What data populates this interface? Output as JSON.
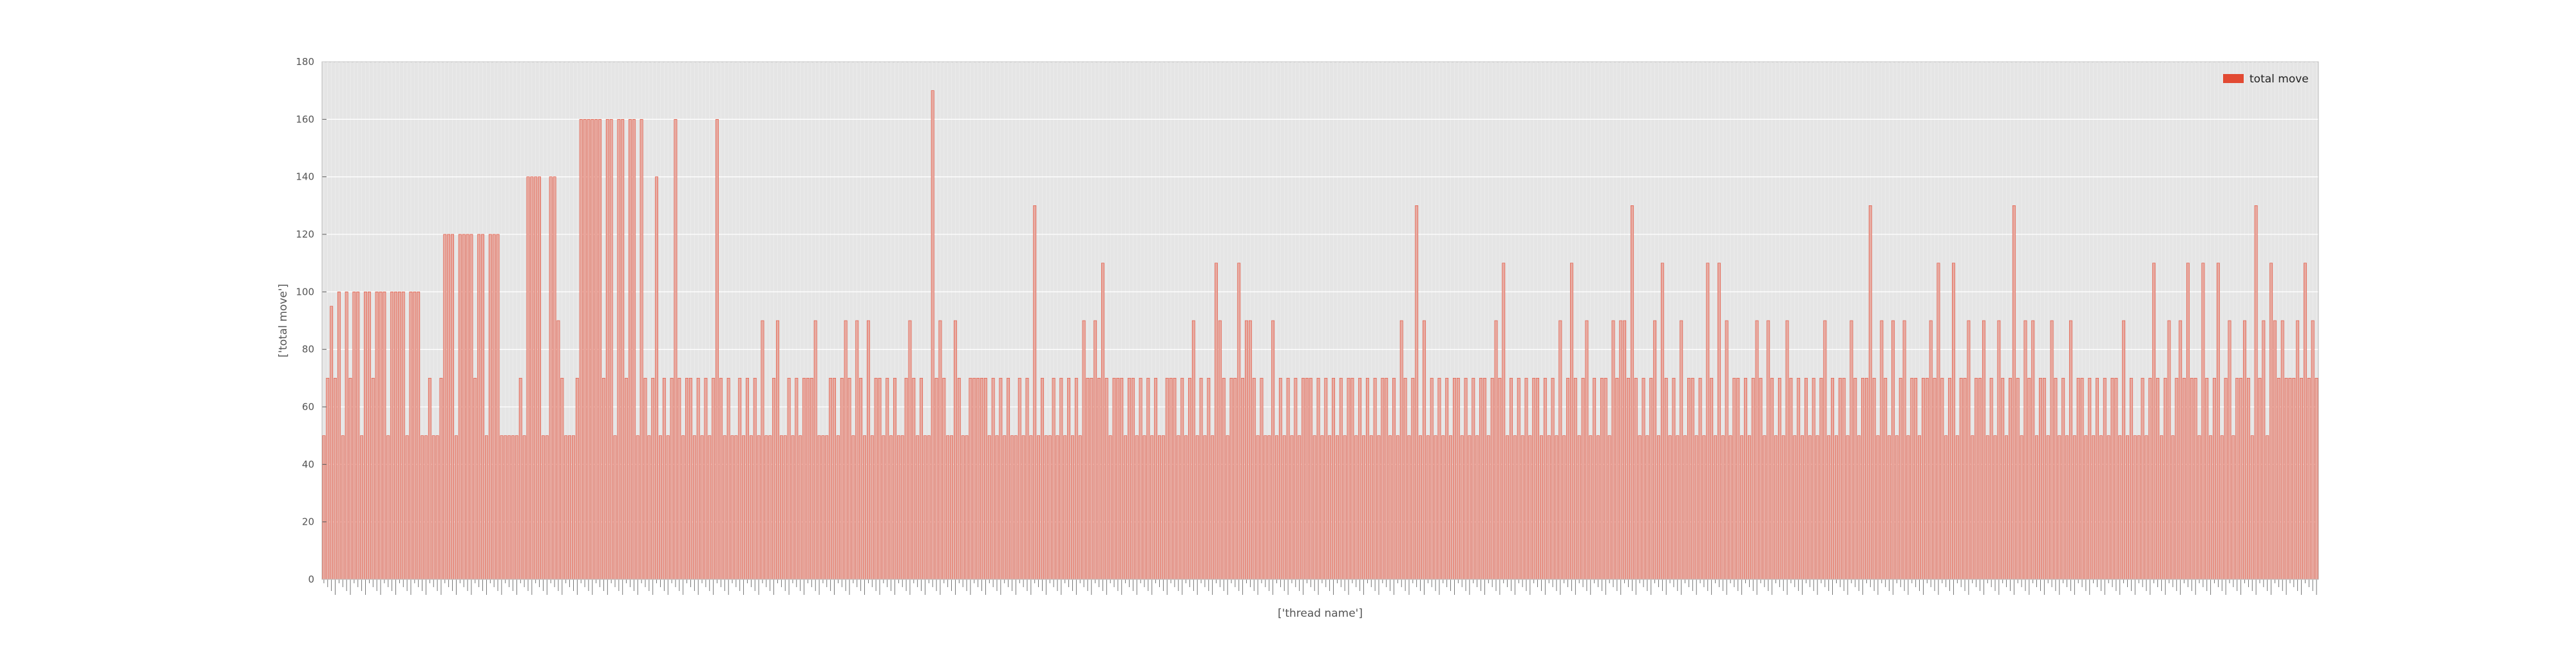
{
  "colors": {
    "plot_background": "#e5e5e5",
    "bar_face": "#e8aba2",
    "bar_edge": "#e24a33",
    "legend_patch": "#e24a33",
    "grid": "#ffffff",
    "text": "#555555"
  },
  "chart_data": {
    "type": "bar",
    "xlabel": "['thread name']",
    "ylabel": "['total move']",
    "ylim": [
      0,
      180
    ],
    "yticks": [
      0,
      20,
      40,
      60,
      80,
      100,
      120,
      140,
      160,
      180
    ],
    "grid": true,
    "legend_position": "top-right",
    "series": [
      {
        "name": "total move",
        "values": [
          50,
          70,
          95,
          70,
          100,
          50,
          100,
          70,
          100,
          100,
          50,
          100,
          100,
          70,
          100,
          100,
          100,
          50,
          100,
          100,
          100,
          100,
          50,
          100,
          100,
          100,
          50,
          50,
          70,
          50,
          50,
          70,
          120,
          120,
          120,
          50,
          120,
          120,
          120,
          120,
          70,
          120,
          120,
          50,
          120,
          120,
          120,
          50,
          50,
          50,
          50,
          50,
          70,
          50,
          140,
          140,
          140,
          140,
          50,
          50,
          140,
          140,
          90,
          70,
          50,
          50,
          50,
          70,
          160,
          160,
          160,
          160,
          160,
          160,
          70,
          160,
          160,
          50,
          160,
          160,
          70,
          160,
          160,
          50,
          160,
          70,
          50,
          70,
          140,
          50,
          70,
          50,
          70,
          160,
          70,
          50,
          70,
          70,
          50,
          70,
          50,
          70,
          50,
          70,
          160,
          70,
          50,
          70,
          50,
          50,
          70,
          50,
          70,
          50,
          70,
          50,
          90,
          50,
          50,
          70,
          90,
          50,
          50,
          70,
          50,
          70,
          50,
          70,
          70,
          70,
          90,
          50,
          50,
          50,
          70,
          70,
          50,
          70,
          90,
          70,
          50,
          90,
          70,
          50,
          90,
          50,
          70,
          70,
          50,
          70,
          50,
          70,
          50,
          50,
          70,
          90,
          70,
          50,
          70,
          50,
          50,
          170,
          70,
          90,
          70,
          50,
          50,
          90,
          70,
          50,
          50,
          70,
          70,
          70,
          70,
          70,
          50,
          70,
          50,
          70,
          50,
          70,
          50,
          50,
          70,
          50,
          70,
          50,
          130,
          50,
          70,
          50,
          50,
          70,
          50,
          70,
          50,
          70,
          50,
          70,
          50,
          90,
          70,
          70,
          90,
          70,
          110,
          70,
          50,
          70,
          70,
          70,
          50,
          70,
          70,
          50,
          70,
          50,
          70,
          50,
          70,
          50,
          50,
          70,
          70,
          70,
          50,
          70,
          50,
          70,
          90,
          50,
          70,
          50,
          70,
          50,
          110,
          90,
          70,
          50,
          70,
          70,
          110,
          70,
          90,
          90,
          70,
          50,
          70,
          50,
          50,
          90,
          50,
          70,
          50,
          70,
          50,
          70,
          50,
          70,
          70,
          70,
          50,
          70,
          50,
          70,
          50,
          70,
          50,
          70,
          50,
          70,
          70,
          50,
          70,
          50,
          70,
          50,
          70,
          50,
          70,
          70,
          50,
          70,
          50,
          90,
          70,
          50,
          70,
          130,
          50,
          90,
          50,
          70,
          50,
          70,
          50,
          70,
          50,
          70,
          70,
          50,
          70,
          50,
          70,
          50,
          70,
          70,
          50,
          70,
          90,
          70,
          110,
          50,
          70,
          50,
          70,
          50,
          70,
          50,
          70,
          70,
          50,
          70,
          50,
          70,
          50,
          90,
          50,
          70,
          110,
          70,
          50,
          70,
          90,
          50,
          70,
          50,
          70,
          70,
          50,
          90,
          70,
          90,
          90,
          70,
          130,
          70,
          50,
          70,
          50,
          70,
          90,
          50,
          110,
          70,
          50,
          70,
          50,
          90,
          50,
          70,
          70,
          50,
          70,
          50,
          110,
          70,
          50,
          110,
          50,
          90,
          50,
          70,
          70,
          50,
          70,
          50,
          70,
          90,
          70,
          50,
          90,
          70,
          50,
          70,
          50,
          90,
          70,
          50,
          70,
          50,
          70,
          50,
          70,
          50,
          70,
          90,
          50,
          70,
          50,
          70,
          70,
          50,
          90,
          70,
          50,
          70,
          70,
          130,
          70,
          50,
          90,
          70,
          50,
          90,
          50,
          70,
          90,
          50,
          70,
          70,
          50,
          70,
          70,
          90,
          70,
          110,
          70,
          50,
          70,
          110,
          50,
          70,
          70,
          90,
          50,
          70,
          70,
          90,
          50,
          70,
          50,
          90,
          70,
          50,
          70,
          130,
          70,
          50,
          90,
          70,
          90,
          50,
          70,
          70,
          50,
          90,
          70,
          50,
          70,
          50,
          90,
          50,
          70,
          70,
          50,
          70,
          50,
          70,
          50,
          70,
          50,
          70,
          70,
          50,
          90,
          50,
          70,
          50,
          50,
          70,
          50,
          70,
          110,
          70,
          50,
          70,
          90,
          50,
          70,
          90,
          70,
          110,
          70,
          70,
          50,
          110,
          70,
          50,
          70,
          110,
          50,
          70,
          90,
          50,
          70,
          70,
          90,
          70,
          50,
          130,
          70,
          90,
          50,
          110,
          90,
          70,
          90,
          70,
          70,
          70,
          90,
          70,
          110,
          70,
          90,
          70
        ]
      }
    ]
  }
}
